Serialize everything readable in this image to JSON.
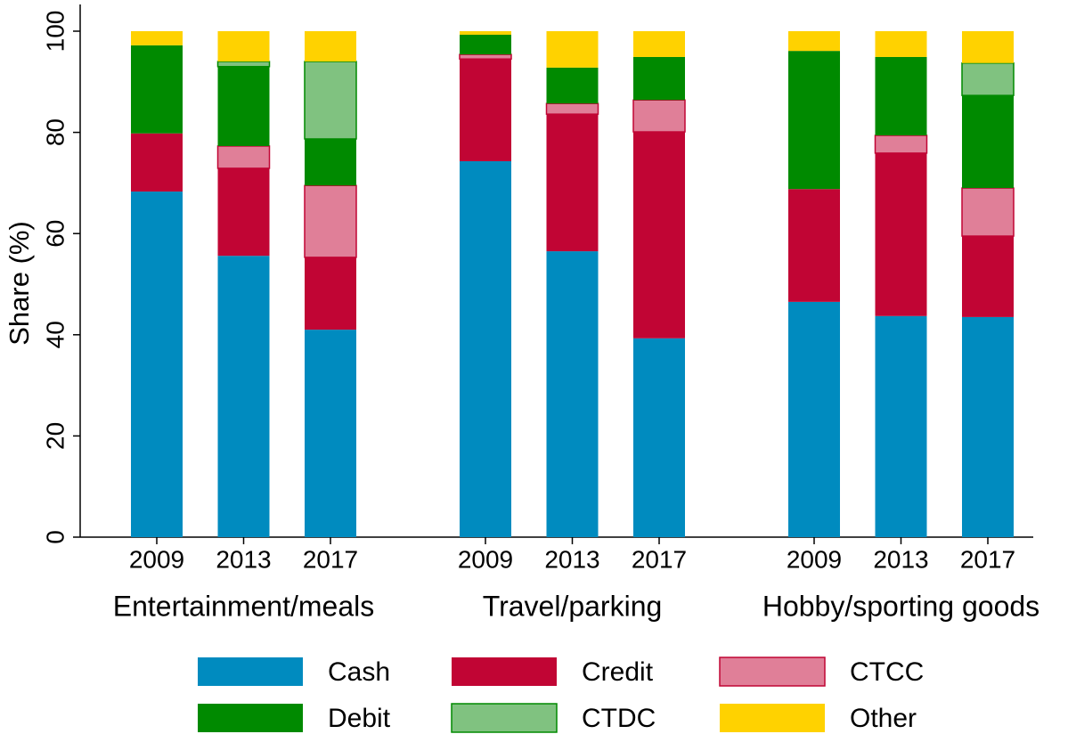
{
  "chart_data": {
    "type": "stacked_bar",
    "ylabel": "Share (%)",
    "groups": [
      "Entertainment/meals",
      "Travel/parking",
      "Hobby/sporting goods"
    ],
    "categories": [
      "2009",
      "2013",
      "2017",
      "2009",
      "2013",
      "2017",
      "2009",
      "2013",
      "2017"
    ],
    "series": [
      {
        "name": "Cash",
        "color": "#008bbf",
        "values": [
          68.3,
          55.6,
          41.0,
          74.3,
          56.5,
          39.3,
          46.5,
          43.7,
          43.5
        ]
      },
      {
        "name": "Credit",
        "color": "#c10534",
        "values": [
          11.5,
          17.3,
          14.3,
          20.2,
          27.1,
          40.8,
          22.3,
          32.2,
          16.0
        ]
      },
      {
        "name": "CTCC",
        "color": "#e07f98",
        "edgecolor": "#c10534",
        "values": [
          0,
          4.4,
          14.2,
          0.9,
          2.1,
          6.3,
          0,
          3.5,
          9.5
        ]
      },
      {
        "name": "Debit",
        "color": "#008a00",
        "values": [
          17.4,
          15.7,
          9.2,
          3.9,
          7.1,
          8.5,
          27.3,
          15.5,
          18.3
        ]
      },
      {
        "name": "CTDC",
        "color": "#80c280",
        "edgecolor": "#008a00",
        "values": [
          0,
          1.0,
          15.3,
          0,
          0,
          0,
          0,
          0,
          6.4
        ]
      },
      {
        "name": "Other",
        "color": "#ffd200",
        "values": [
          2.8,
          6.0,
          6.0,
          0.7,
          7.2,
          5.1,
          3.9,
          5.1,
          6.3
        ]
      }
    ],
    "ylim": [
      0,
      100
    ],
    "yticks": [
      0,
      20,
      40,
      60,
      80,
      100
    ],
    "grid": false
  }
}
